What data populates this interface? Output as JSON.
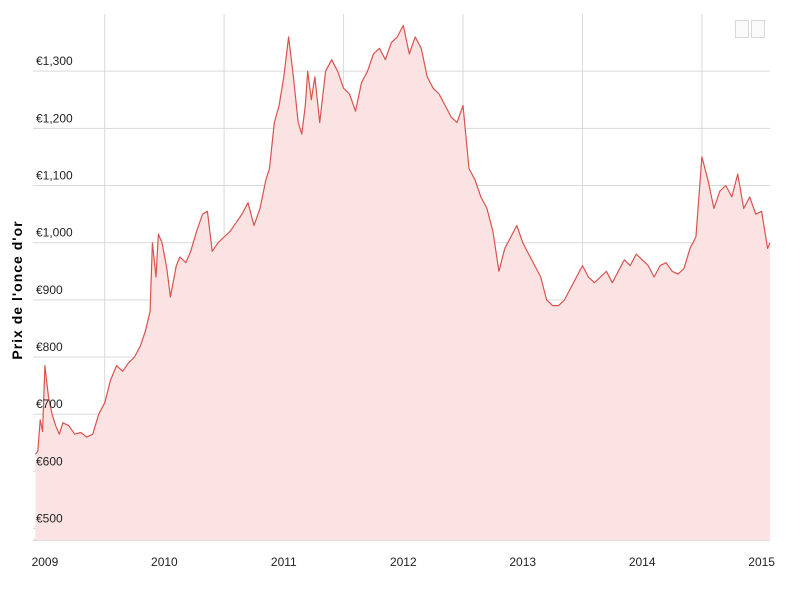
{
  "chart_data": {
    "type": "area",
    "title": "",
    "xlabel": "",
    "ylabel": "Prix de l'once d'or",
    "ylim": [
      480,
      1400
    ],
    "y_ticks": [
      {
        "value": 500,
        "label": "€500"
      },
      {
        "value": 600,
        "label": "€600"
      },
      {
        "value": 700,
        "label": "€700"
      },
      {
        "value": 800,
        "label": "€800"
      },
      {
        "value": 900,
        "label": "€900"
      },
      {
        "value": 1000,
        "label": "€1,000"
      },
      {
        "value": 1100,
        "label": "€1,100"
      },
      {
        "value": 1200,
        "label": "€1,200"
      },
      {
        "value": 1300,
        "label": "€1,300"
      }
    ],
    "x_range": [
      2008.9,
      2015.07
    ],
    "x_ticks": [
      {
        "value": 2009,
        "label": "2009"
      },
      {
        "value": 2010,
        "label": "2010"
      },
      {
        "value": 2011,
        "label": "2011"
      },
      {
        "value": 2012,
        "label": "2012"
      },
      {
        "value": 2013,
        "label": "2013"
      },
      {
        "value": 2014,
        "label": "2014"
      },
      {
        "value": 2015,
        "label": "2015"
      }
    ],
    "grid": true,
    "colors": {
      "line": "#d9534f",
      "fill": "#fbe3e3",
      "grid": "#d9d9d9"
    },
    "series": [
      {
        "x": [
          2008.92,
          2008.94,
          2008.96,
          2008.98,
          2009.0,
          2009.03,
          2009.06,
          2009.09,
          2009.12,
          2009.15,
          2009.2,
          2009.25,
          2009.3,
          2009.35,
          2009.4,
          2009.45,
          2009.5,
          2009.55,
          2009.6,
          2009.65,
          2009.7,
          2009.75,
          2009.8,
          2009.84,
          2009.88,
          2009.9,
          2009.93,
          2009.95,
          2009.98,
          2010.02,
          2010.05,
          2010.1,
          2010.13,
          2010.18,
          2010.22,
          2010.27,
          2010.32,
          2010.36,
          2010.4,
          2010.45,
          2010.5,
          2010.55,
          2010.6,
          2010.65,
          2010.7,
          2010.75,
          2010.8,
          2010.85,
          2010.88,
          2010.92,
          2010.96,
          2011.0,
          2011.04,
          2011.08,
          2011.12,
          2011.15,
          2011.18,
          2011.2,
          2011.23,
          2011.26,
          2011.3,
          2011.35,
          2011.4,
          2011.45,
          2011.5,
          2011.55,
          2011.6,
          2011.65,
          2011.7,
          2011.75,
          2011.8,
          2011.85,
          2011.9,
          2011.95,
          2012.0,
          2012.05,
          2012.1,
          2012.15,
          2012.2,
          2012.25,
          2012.3,
          2012.35,
          2012.4,
          2012.45,
          2012.5,
          2012.55,
          2012.6,
          2012.65,
          2012.7,
          2012.75,
          2012.8,
          2012.85,
          2012.9,
          2012.95,
          2013.0,
          2013.05,
          2013.1,
          2013.15,
          2013.2,
          2013.25,
          2013.3,
          2013.35,
          2013.4,
          2013.45,
          2013.5,
          2013.55,
          2013.6,
          2013.65,
          2013.7,
          2013.75,
          2013.8,
          2013.85,
          2013.9,
          2013.95,
          2014.0,
          2014.05,
          2014.1,
          2014.15,
          2014.2,
          2014.25,
          2014.3,
          2014.35,
          2014.4,
          2014.45,
          2014.5,
          2014.55,
          2014.6,
          2014.65,
          2014.7,
          2014.75,
          2014.8,
          2014.85,
          2014.9,
          2014.95,
          2015.0,
          2015.05,
          2015.07
        ],
        "values": [
          630,
          635,
          690,
          670,
          785,
          730,
          700,
          680,
          665,
          685,
          680,
          665,
          668,
          660,
          665,
          700,
          720,
          760,
          785,
          775,
          790,
          800,
          820,
          845,
          880,
          1000,
          940,
          1015,
          1000,
          955,
          905,
          960,
          975,
          965,
          985,
          1020,
          1050,
          1055,
          985,
          1000,
          1010,
          1020,
          1035,
          1050,
          1070,
          1030,
          1060,
          1110,
          1130,
          1210,
          1240,
          1290,
          1360,
          1290,
          1210,
          1190,
          1240,
          1300,
          1250,
          1290,
          1210,
          1300,
          1320,
          1300,
          1270,
          1260,
          1230,
          1280,
          1300,
          1330,
          1340,
          1320,
          1350,
          1360,
          1380,
          1330,
          1360,
          1340,
          1290,
          1270,
          1260,
          1240,
          1220,
          1210,
          1240,
          1130,
          1110,
          1080,
          1060,
          1020,
          950,
          990,
          1010,
          1030,
          1000,
          980,
          960,
          940,
          900,
          890,
          890,
          900,
          920,
          940,
          960,
          940,
          930,
          940,
          950,
          930,
          950,
          970,
          960,
          980,
          970,
          960,
          940,
          960,
          965,
          950,
          945,
          955,
          990,
          1010,
          1150,
          1110,
          1060,
          1090,
          1100,
          1080,
          1120,
          1060,
          1080,
          1050,
          1055,
          990,
          1000
        ]
      }
    ]
  }
}
